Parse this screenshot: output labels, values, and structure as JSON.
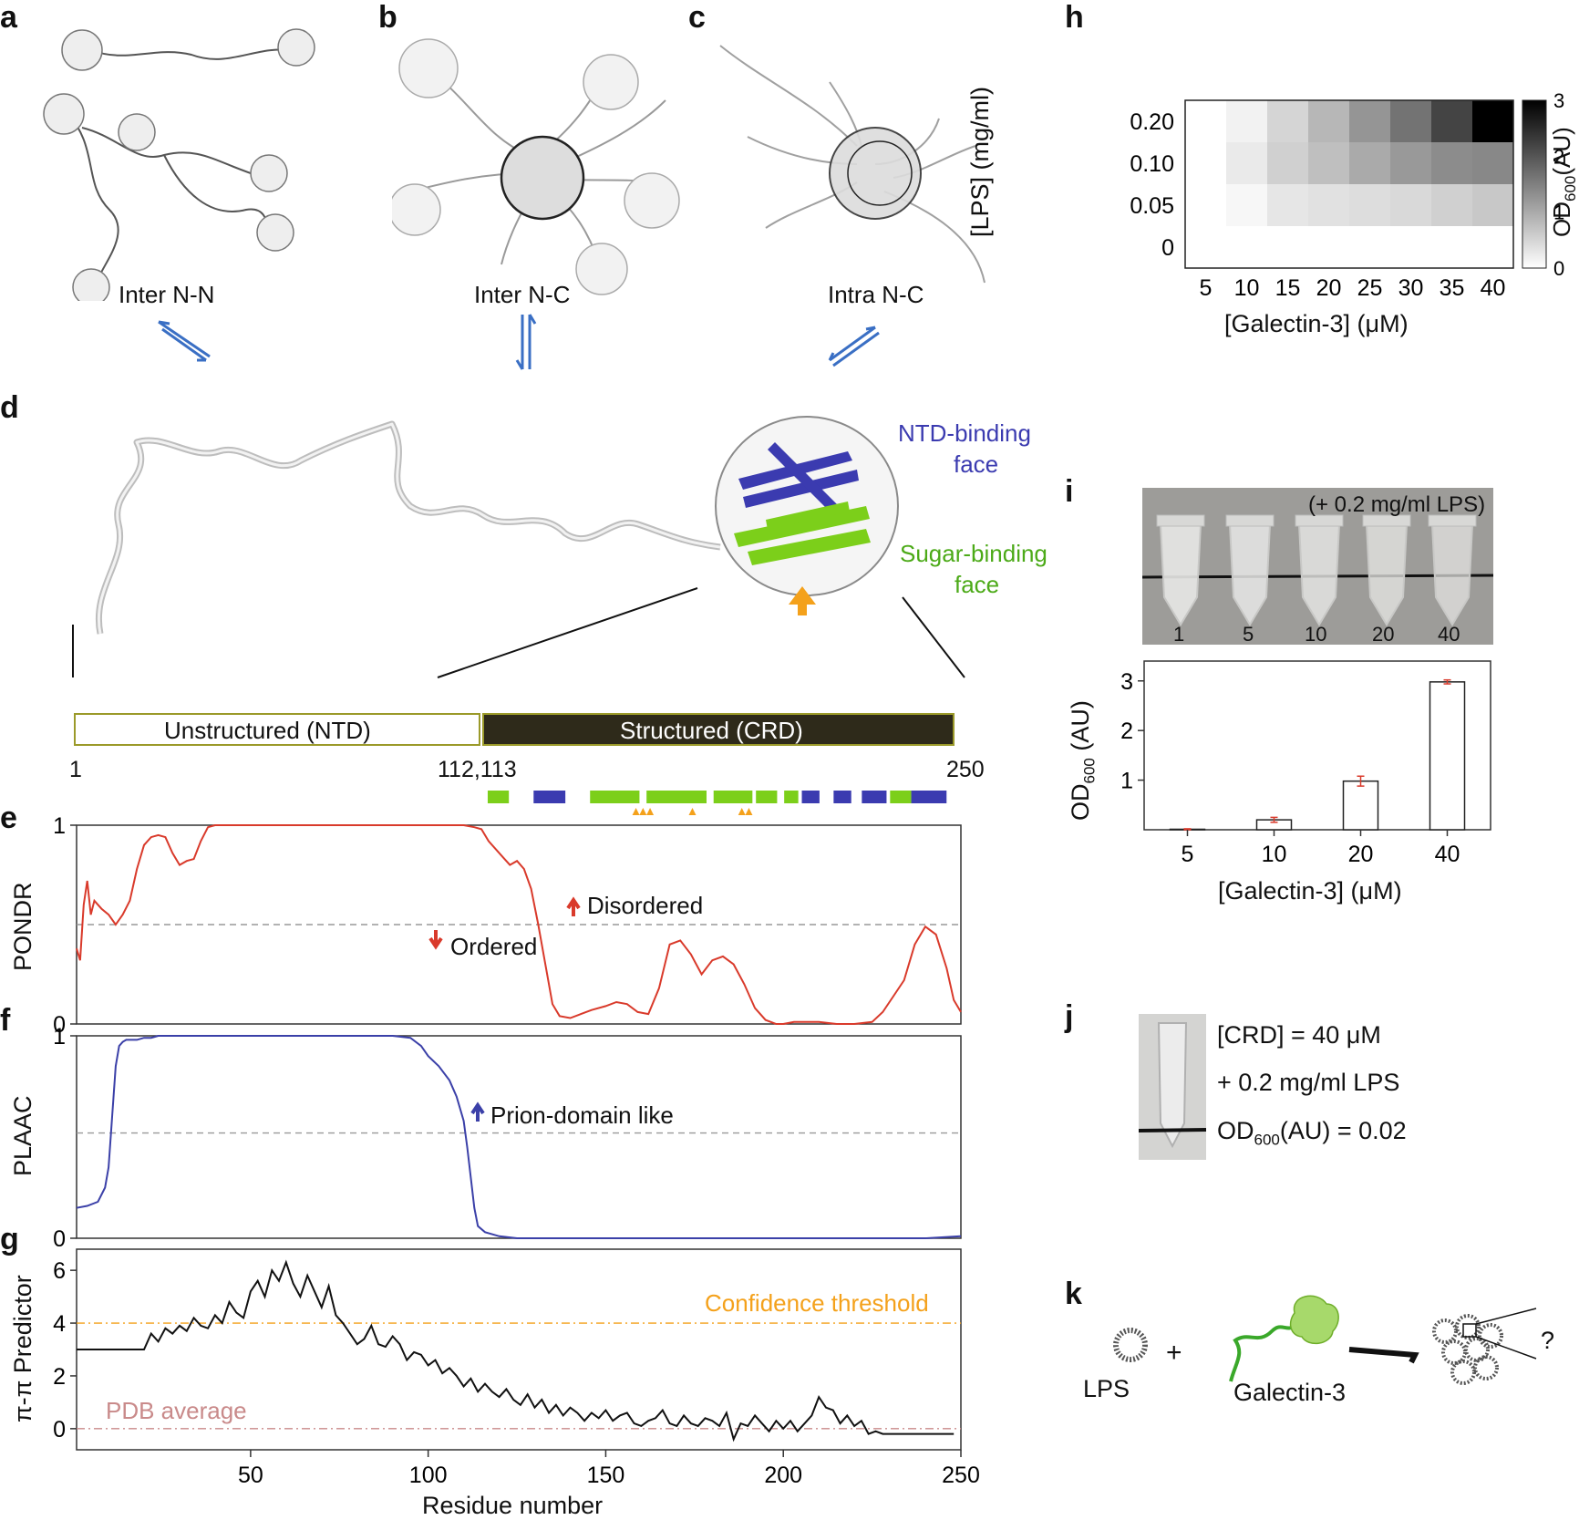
{
  "panel_labels": [
    "a",
    "b",
    "c",
    "d",
    "e",
    "f",
    "g",
    "h",
    "i",
    "j",
    "k"
  ],
  "panel_a": {
    "label": "Inter N-N"
  },
  "panel_b": {
    "label": "Inter N-C"
  },
  "panel_c": {
    "label": "Intra N-C"
  },
  "panel_d": {
    "ntd_face": [
      "NTD-binding",
      "face"
    ],
    "sugar_face": [
      "Sugar-binding",
      "face"
    ],
    "domains": [
      {
        "label": "Unstructured (NTD)",
        "start": 1,
        "end": 112
      },
      {
        "label": "Structured (CRD)",
        "start": 113,
        "end": 250
      }
    ],
    "ticks": [
      "1",
      "112,113",
      "250"
    ],
    "green_segments": [
      [
        118,
        124
      ],
      [
        147,
        161
      ],
      [
        163,
        180
      ],
      [
        182,
        193
      ],
      [
        194,
        200
      ],
      [
        202,
        206
      ],
      [
        232,
        238
      ]
    ],
    "blue_segments": [
      [
        131,
        140
      ],
      [
        207,
        212
      ],
      [
        216,
        221
      ],
      [
        224,
        231
      ],
      [
        238,
        248
      ]
    ],
    "triangle_positions": [
      160,
      162,
      164,
      176,
      190,
      192
    ],
    "colors": {
      "ntd": "#3b3bb0",
      "sugar": "#7ccf1a",
      "crd_bar": "#2e2a1a",
      "triangle": "#f4a11b"
    }
  },
  "chart_data": [
    {
      "panel": "e",
      "type": "line",
      "ylabel": "PONDR",
      "xlim": [
        1,
        250
      ],
      "ylim": [
        0,
        1
      ],
      "yticks": [
        "0",
        "1"
      ],
      "threshold": 0.5,
      "color": "#d93a2b",
      "annotations": [
        "Disordered",
        "Ordered"
      ],
      "x": [
        1,
        2,
        3,
        4,
        5,
        6,
        8,
        10,
        12,
        14,
        16,
        18,
        20,
        22,
        24,
        26,
        28,
        30,
        32,
        34,
        36,
        38,
        40,
        45,
        50,
        60,
        70,
        80,
        90,
        100,
        105,
        110,
        113,
        115,
        117,
        119,
        121,
        123,
        125,
        127,
        129,
        131,
        133,
        135,
        137,
        140,
        143,
        146,
        150,
        153,
        156,
        159,
        162,
        165,
        168,
        171,
        174,
        177,
        180,
        183,
        186,
        189,
        192,
        195,
        198,
        200,
        203,
        206,
        210,
        215,
        220,
        225,
        228,
        231,
        234,
        237,
        240,
        243,
        246,
        248,
        250
      ],
      "y": [
        0.38,
        0.32,
        0.6,
        0.72,
        0.55,
        0.62,
        0.58,
        0.55,
        0.5,
        0.55,
        0.62,
        0.78,
        0.9,
        0.94,
        0.95,
        0.94,
        0.86,
        0.8,
        0.82,
        0.83,
        0.92,
        0.99,
        1.0,
        1.0,
        1.0,
        1.0,
        1.0,
        1.0,
        1.0,
        1.0,
        1.0,
        1.0,
        0.99,
        0.98,
        0.92,
        0.88,
        0.84,
        0.8,
        0.82,
        0.78,
        0.68,
        0.5,
        0.3,
        0.1,
        0.04,
        0.03,
        0.05,
        0.07,
        0.09,
        0.11,
        0.1,
        0.06,
        0.05,
        0.18,
        0.4,
        0.42,
        0.35,
        0.25,
        0.32,
        0.34,
        0.3,
        0.2,
        0.08,
        0.02,
        0.0,
        0.0,
        0.01,
        0.01,
        0.01,
        0.0,
        0.0,
        0.01,
        0.06,
        0.14,
        0.22,
        0.4,
        0.49,
        0.45,
        0.28,
        0.12,
        0.06
      ]
    },
    {
      "panel": "f",
      "type": "line",
      "ylabel": "PLAAC",
      "xlim": [
        1,
        250
      ],
      "ylim": [
        0,
        1
      ],
      "yticks": [
        "0",
        "1"
      ],
      "threshold": 0.52,
      "color": "#3b40a8",
      "annotations": [
        "Prion-domain like"
      ],
      "x": [
        1,
        4,
        7,
        9,
        10,
        11,
        12,
        13,
        14,
        15,
        16,
        18,
        20,
        22,
        24,
        26,
        28,
        30,
        35,
        40,
        50,
        60,
        70,
        80,
        90,
        95,
        98,
        100,
        103,
        106,
        108,
        110,
        111,
        112,
        113,
        114,
        116,
        118,
        120,
        125,
        130,
        140,
        160,
        180,
        200,
        220,
        240,
        250
      ],
      "y": [
        0.15,
        0.16,
        0.18,
        0.25,
        0.35,
        0.6,
        0.85,
        0.95,
        0.97,
        0.98,
        0.98,
        0.98,
        0.99,
        0.99,
        1.0,
        1.0,
        1.0,
        1.0,
        1.0,
        1.0,
        1.0,
        1.0,
        1.0,
        1.0,
        1.0,
        0.99,
        0.95,
        0.9,
        0.85,
        0.78,
        0.7,
        0.58,
        0.45,
        0.3,
        0.15,
        0.06,
        0.03,
        0.02,
        0.01,
        0.0,
        0.0,
        0.0,
        0.0,
        0.0,
        0.0,
        0.0,
        0.0,
        0.01
      ]
    },
    {
      "panel": "g",
      "type": "line",
      "ylabel": "π-π Predictor",
      "xlabel": "Residue number",
      "xlim": [
        1,
        250
      ],
      "ylim": [
        -0.8,
        6.8
      ],
      "xticks": [
        "50",
        "100",
        "150",
        "200",
        "250"
      ],
      "yticks": [
        "0",
        "2",
        "4",
        "6"
      ],
      "thresholds": [
        {
          "label": "Confidence threshold",
          "value": 4.0,
          "color": "#f4a11b"
        },
        {
          "label": "PDB average",
          "value": 0.0,
          "color": "#c98a8a"
        }
      ],
      "x": [
        1,
        20,
        22,
        24,
        26,
        28,
        30,
        32,
        34,
        36,
        38,
        40,
        42,
        44,
        46,
        48,
        50,
        52,
        54,
        56,
        58,
        60,
        62,
        64,
        66,
        68,
        70,
        72,
        74,
        76,
        78,
        80,
        82,
        84,
        86,
        88,
        90,
        92,
        94,
        96,
        98,
        100,
        102,
        104,
        106,
        108,
        110,
        112,
        114,
        116,
        118,
        120,
        122,
        124,
        126,
        128,
        130,
        132,
        134,
        136,
        138,
        140,
        142,
        144,
        146,
        148,
        150,
        152,
        154,
        156,
        158,
        160,
        162,
        164,
        166,
        168,
        170,
        172,
        174,
        176,
        178,
        180,
        182,
        184,
        186,
        188,
        190,
        192,
        194,
        196,
        198,
        200,
        202,
        204,
        206,
        208,
        210,
        212,
        214,
        216,
        218,
        220,
        222,
        224,
        226,
        228,
        248
      ],
      "y": [
        3.0,
        3.0,
        3.6,
        3.3,
        3.8,
        3.6,
        3.9,
        3.7,
        4.2,
        3.9,
        3.8,
        4.3,
        4.0,
        4.8,
        4.4,
        4.2,
        5.2,
        5.6,
        5.0,
        6.0,
        5.6,
        6.3,
        5.5,
        5.0,
        5.8,
        5.2,
        4.6,
        5.4,
        4.3,
        4.0,
        3.6,
        3.2,
        3.4,
        3.9,
        3.2,
        3.1,
        3.5,
        3.2,
        2.6,
        2.9,
        2.8,
        2.4,
        2.6,
        2.1,
        2.3,
        2.0,
        1.6,
        1.9,
        1.4,
        1.7,
        1.4,
        1.2,
        1.5,
        1.1,
        0.9,
        1.3,
        0.8,
        1.1,
        0.6,
        0.9,
        0.5,
        0.8,
        0.6,
        0.3,
        0.6,
        0.4,
        0.7,
        0.3,
        0.5,
        0.6,
        0.2,
        0.1,
        0.3,
        0.4,
        0.7,
        0.2,
        0.1,
        0.5,
        0.2,
        0.1,
        0.4,
        0.3,
        0.1,
        0.6,
        -0.4,
        0.2,
        0.1,
        0.5,
        0.2,
        -0.1,
        0.3,
        0.0,
        0.3,
        -0.1,
        0.2,
        0.5,
        1.2,
        0.8,
        0.7,
        0.2,
        0.5,
        0.1,
        0.3,
        -0.2,
        -0.1,
        -0.2,
        -0.2
      ]
    },
    {
      "panel": "h",
      "type": "heatmap",
      "xlabel": "[Galectin-3] (μM)",
      "ylabel": "[LPS] (mg/ml)",
      "x": [
        "5",
        "10",
        "15",
        "20",
        "25",
        "30",
        "35",
        "40"
      ],
      "y": [
        "0.20",
        "0.10",
        "0.05",
        "0"
      ],
      "values": [
        [
          0.0,
          0.15,
          0.5,
          0.85,
          1.25,
          1.65,
          2.2,
          3.0
        ],
        [
          0.0,
          0.25,
          0.55,
          0.75,
          1.0,
          1.2,
          1.35,
          1.4
        ],
        [
          0.0,
          0.1,
          0.3,
          0.35,
          0.4,
          0.45,
          0.55,
          0.65
        ],
        [
          0.0,
          0.0,
          0.0,
          0.0,
          0.0,
          0.0,
          0.0,
          0.0
        ]
      ],
      "colorbar_label": "OD600(AU)",
      "colorbar_ticks": [
        "0",
        "1",
        "2",
        "3"
      ],
      "colorbar_range": [
        0,
        3
      ]
    },
    {
      "panel": "i",
      "type": "bar",
      "xlabel": "[Galectin-3] (μM)",
      "ylabel": "OD600 (AU)",
      "categories": [
        "5",
        "10",
        "20",
        "40"
      ],
      "values": [
        0.01,
        0.2,
        0.98,
        2.98
      ],
      "errors": [
        0.01,
        0.05,
        0.1,
        0.04
      ],
      "ylim": [
        0,
        3.4
      ],
      "yticks": [
        "1",
        "2",
        "3"
      ]
    }
  ],
  "panel_i": {
    "photo_caption": "(+ 0.2 mg/ml LPS)",
    "tube_labels": [
      "1",
      "5",
      "10",
      "20",
      "40"
    ]
  },
  "panel_j": {
    "lines": [
      "[CRD] = 40 μM",
      "+ 0.2 mg/ml LPS",
      "OD600(AU) = 0.02"
    ]
  },
  "panel_k": {
    "lps_label": "LPS",
    "plus": "+",
    "galectin_label": "Galectin-3",
    "question": "?"
  }
}
